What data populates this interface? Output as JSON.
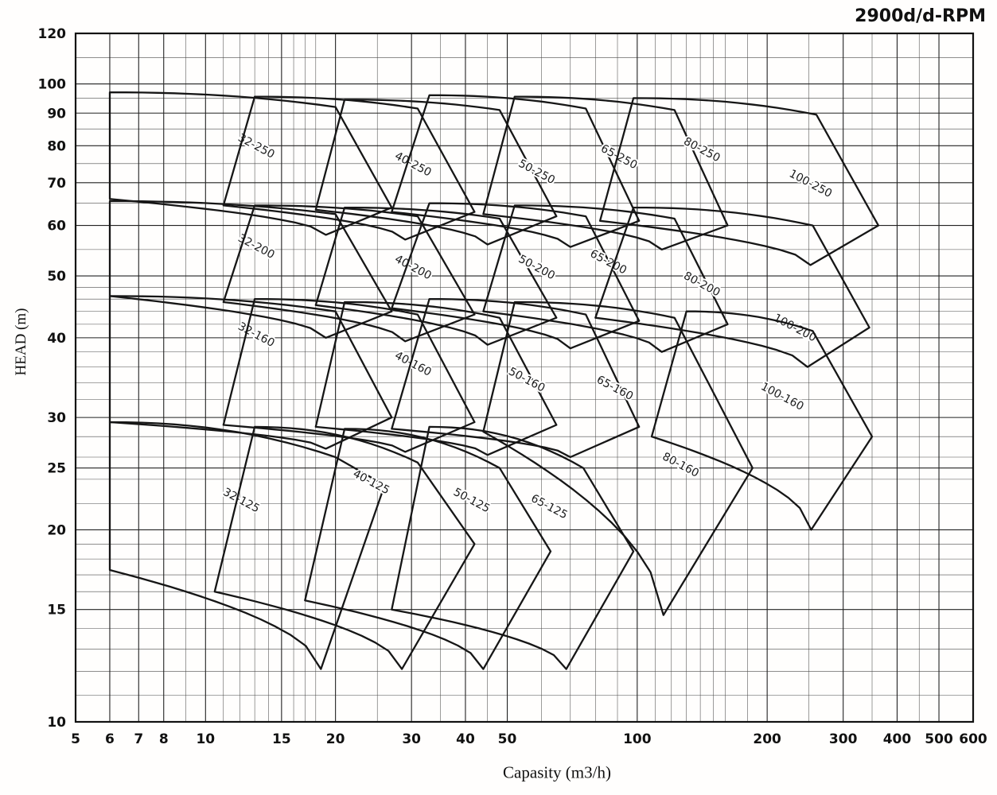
{
  "page": {
    "title": "2900d/d-RPM"
  },
  "chart_data": {
    "type": "line",
    "subtype": "pump-selection-envelope-chart",
    "title": "2900d/d-RPM",
    "xlabel": "Capasity (m3/h)",
    "ylabel": "HEAD (m)",
    "x_scale": "log",
    "y_scale": "log",
    "xlim": [
      5,
      600
    ],
    "ylim": [
      10,
      120
    ],
    "grid": true,
    "x_ticks_labeled": [
      5,
      6,
      7,
      8,
      10,
      15,
      20,
      30,
      40,
      50,
      100,
      200,
      300,
      400,
      500,
      600
    ],
    "x_grid_minor": [
      9,
      11,
      12,
      13,
      14,
      16,
      17,
      18,
      25,
      35,
      45,
      60,
      70,
      80,
      90,
      110,
      120,
      130,
      140,
      150,
      160,
      180,
      250,
      350,
      450
    ],
    "y_ticks_labeled": [
      10,
      15,
      20,
      25,
      30,
      40,
      50,
      60,
      70,
      80,
      90,
      100,
      120
    ],
    "y_grid_minor": [
      11,
      12,
      13,
      14,
      16,
      17,
      18,
      19,
      22,
      24,
      26,
      28,
      32,
      34,
      36,
      38,
      42,
      44,
      46,
      48,
      55,
      65,
      75,
      85,
      95,
      110
    ],
    "envelopes": [
      {
        "label": "32-250",
        "points": {
          "tl": [
            6,
            97
          ],
          "tr": [
            20,
            92
          ],
          "r": [
            27,
            64
          ],
          "b": [
            19,
            58
          ],
          "bl": [
            6,
            66
          ]
        },
        "label_pos": [
          13,
          79
        ]
      },
      {
        "label": "40-250",
        "points": {
          "tl": [
            13,
            95.5
          ],
          "tr": [
            31,
            91.5
          ],
          "r": [
            42,
            63
          ],
          "b": [
            29,
            57
          ],
          "bl": [
            11,
            64.5
          ]
        },
        "label_pos": [
          30,
          74
        ]
      },
      {
        "label": "50-250",
        "points": {
          "tl": [
            21,
            94.5
          ],
          "tr": [
            48,
            91
          ],
          "r": [
            65,
            62
          ],
          "b": [
            45,
            56
          ],
          "bl": [
            18,
            63.5
          ]
        },
        "label_pos": [
          58,
          72
        ]
      },
      {
        "label": "65-250",
        "points": {
          "tl": [
            33,
            96
          ],
          "tr": [
            76,
            91.5
          ],
          "r": [
            101,
            61
          ],
          "b": [
            70,
            55.5
          ],
          "bl": [
            27,
            63
          ]
        },
        "label_pos": [
          90,
          76
        ]
      },
      {
        "label": "80-250",
        "points": {
          "tl": [
            52,
            95.5
          ],
          "tr": [
            122,
            91
          ],
          "r": [
            162,
            60
          ],
          "b": [
            114,
            55
          ],
          "bl": [
            44,
            62.5
          ]
        },
        "label_pos": [
          140,
          78
        ]
      },
      {
        "label": "100-250",
        "points": {
          "tl": [
            98,
            95
          ],
          "tr": [
            260,
            89.5
          ],
          "r": [
            362,
            60
          ],
          "b": [
            252,
            52
          ],
          "bl": [
            82,
            61
          ]
        },
        "label_pos": [
          250,
          69
        ]
      },
      {
        "label": "32-200",
        "points": {
          "tl": [
            6,
            65.5
          ],
          "tr": [
            20,
            62.5
          ],
          "r": [
            27,
            44
          ],
          "b": [
            19,
            40
          ],
          "bl": [
            6,
            46.5
          ]
        },
        "label_pos": [
          13,
          55
        ]
      },
      {
        "label": "40-200",
        "points": {
          "tl": [
            13,
            64.5
          ],
          "tr": [
            31,
            62
          ],
          "r": [
            42,
            43.5
          ],
          "b": [
            29,
            39.5
          ],
          "bl": [
            11,
            45.5
          ]
        },
        "label_pos": [
          30,
          51
        ]
      },
      {
        "label": "50-200",
        "points": {
          "tl": [
            21,
            64
          ],
          "tr": [
            48,
            61.5
          ],
          "r": [
            65,
            43
          ],
          "b": [
            45,
            39
          ],
          "bl": [
            18,
            45
          ]
        },
        "label_pos": [
          58,
          51
        ]
      },
      {
        "label": "65-200",
        "points": {
          "tl": [
            33,
            65
          ],
          "tr": [
            76,
            62
          ],
          "r": [
            101,
            42.5
          ],
          "b": [
            70,
            38.5
          ],
          "bl": [
            27,
            44.5
          ]
        },
        "label_pos": [
          85,
          52
        ]
      },
      {
        "label": "80-200",
        "points": {
          "tl": [
            52,
            64.5
          ],
          "tr": [
            122,
            61.5
          ],
          "r": [
            162,
            42
          ],
          "b": [
            114,
            38
          ],
          "bl": [
            44,
            44
          ]
        },
        "label_pos": [
          140,
          48
        ]
      },
      {
        "label": "100-200",
        "points": {
          "tl": [
            98,
            64
          ],
          "tr": [
            255,
            60
          ],
          "r": [
            345,
            41.5
          ],
          "b": [
            248,
            36
          ],
          "bl": [
            80,
            43
          ]
        },
        "label_pos": [
          230,
          41
        ]
      },
      {
        "label": "32-160",
        "points": {
          "tl": [
            6,
            46.5
          ],
          "tr": [
            20,
            44
          ],
          "r": [
            27,
            30
          ],
          "b": [
            19,
            26.8
          ],
          "bl": [
            6,
            29.5
          ]
        },
        "label_pos": [
          13,
          40
        ]
      },
      {
        "label": "40-160",
        "points": {
          "tl": [
            13,
            46
          ],
          "tr": [
            31,
            43.5
          ],
          "r": [
            42,
            29.5
          ],
          "b": [
            29,
            26.5
          ],
          "bl": [
            11,
            29.2
          ]
        },
        "label_pos": [
          30,
          36
        ]
      },
      {
        "label": "50-160",
        "points": {
          "tl": [
            21,
            45.5
          ],
          "tr": [
            48,
            43
          ],
          "r": [
            65,
            29.2
          ],
          "b": [
            45,
            26.2
          ],
          "bl": [
            18,
            29
          ]
        },
        "label_pos": [
          55,
          34
        ]
      },
      {
        "label": "65-160",
        "points": {
          "tl": [
            33,
            46
          ],
          "tr": [
            76,
            43.5
          ],
          "r": [
            101,
            29
          ],
          "b": [
            70,
            26
          ],
          "bl": [
            27,
            28.8
          ]
        },
        "label_pos": [
          88,
          33
        ]
      },
      {
        "label": "80-160",
        "points": {
          "tl": [
            52,
            45.5
          ],
          "tr": [
            122,
            43
          ],
          "r": [
            185,
            25
          ],
          "b": [
            115,
            14.7
          ],
          "bl": [
            44,
            28.5
          ]
        },
        "label_pos": [
          125,
          25
        ]
      },
      {
        "label": "100-160",
        "points": {
          "tl": [
            130,
            44
          ],
          "tr": [
            255,
            41
          ],
          "r": [
            350,
            28
          ],
          "b": [
            253,
            20
          ],
          "bl": [
            108,
            28
          ]
        },
        "label_pos": [
          215,
          32
        ]
      },
      {
        "label": "32-125",
        "points": {
          "tl": [
            6,
            29.5
          ],
          "tr": [
            20,
            26
          ],
          "r": [
            26,
            23.5
          ],
          "b": [
            18.5,
            12.1
          ],
          "bl": [
            6,
            17.3
          ]
        },
        "label_pos": [
          12,
          22
        ]
      },
      {
        "label": "40-125",
        "points": {
          "tl": [
            13,
            29
          ],
          "tr": [
            31,
            25.5
          ],
          "r": [
            42,
            19
          ],
          "b": [
            28.5,
            12.1
          ],
          "bl": [
            10.5,
            16
          ]
        },
        "label_pos": [
          24,
          23.5
        ]
      },
      {
        "label": "50-125",
        "points": {
          "tl": [
            21,
            28.8
          ],
          "tr": [
            48,
            25
          ],
          "r": [
            63,
            18.5
          ],
          "b": [
            44,
            12.1
          ],
          "bl": [
            17,
            15.5
          ]
        },
        "label_pos": [
          41,
          22
        ]
      },
      {
        "label": "65-125",
        "points": {
          "tl": [
            33,
            29
          ],
          "tr": [
            75,
            25
          ],
          "r": [
            98,
            18.5
          ],
          "b": [
            68.5,
            12.1
          ],
          "bl": [
            27,
            15
          ]
        },
        "label_pos": [
          62,
          21.5
        ]
      }
    ]
  }
}
